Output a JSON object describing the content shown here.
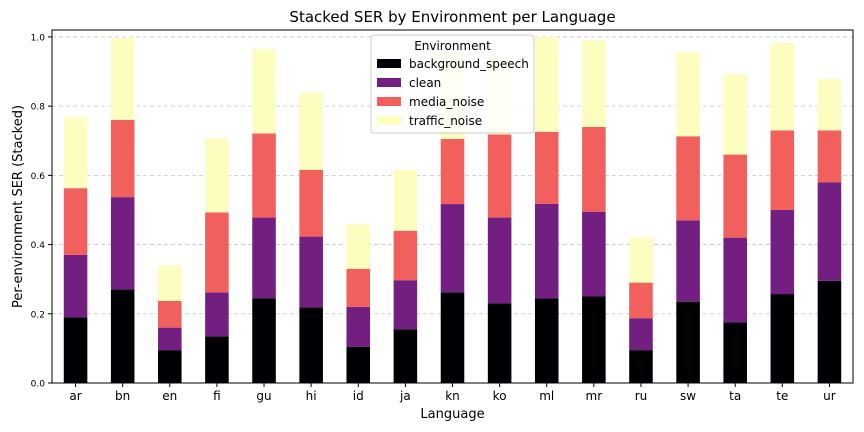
{
  "chart_data": {
    "type": "bar",
    "stacked": true,
    "title": "Stacked SER by Environment per Language",
    "xlabel": "Language",
    "ylabel": "Per-environment SER (Stacked)",
    "ylim": [
      0,
      1.02
    ],
    "yticks": [
      "0.0",
      "0.2",
      "0.4",
      "0.6",
      "0.8",
      "1.0"
    ],
    "grid": "y-dashed",
    "legend_title": "Environment",
    "legend_position": "top-center",
    "categories": [
      "ar",
      "bn",
      "en",
      "fi",
      "gu",
      "hi",
      "id",
      "ja",
      "kn",
      "ko",
      "ml",
      "mr",
      "ru",
      "sw",
      "ta",
      "te",
      "ur"
    ],
    "series": [
      {
        "name": "background_speech",
        "color": "#000004",
        "values": [
          0.19,
          0.27,
          0.095,
          0.135,
          0.245,
          0.218,
          0.105,
          0.155,
          0.262,
          0.23,
          0.245,
          0.25,
          0.095,
          0.235,
          0.175,
          0.257,
          0.295
        ]
      },
      {
        "name": "clean",
        "color": "#721f81",
        "values": [
          0.18,
          0.267,
          0.065,
          0.127,
          0.233,
          0.205,
          0.115,
          0.142,
          0.255,
          0.248,
          0.273,
          0.245,
          0.092,
          0.235,
          0.245,
          0.243,
          0.285
        ]
      },
      {
        "name": "media_noise",
        "color": "#f1605d",
        "values": [
          0.193,
          0.223,
          0.077,
          0.231,
          0.243,
          0.193,
          0.11,
          0.143,
          0.188,
          0.24,
          0.208,
          0.245,
          0.103,
          0.243,
          0.24,
          0.23,
          0.15
        ]
      },
      {
        "name": "traffic_noise",
        "color": "#fcfdbf",
        "values": [
          0.205,
          0.237,
          0.103,
          0.214,
          0.244,
          0.222,
          0.128,
          0.175,
          0.25,
          0.222,
          0.274,
          0.25,
          0.13,
          0.242,
          0.232,
          0.252,
          0.148
        ]
      }
    ]
  }
}
